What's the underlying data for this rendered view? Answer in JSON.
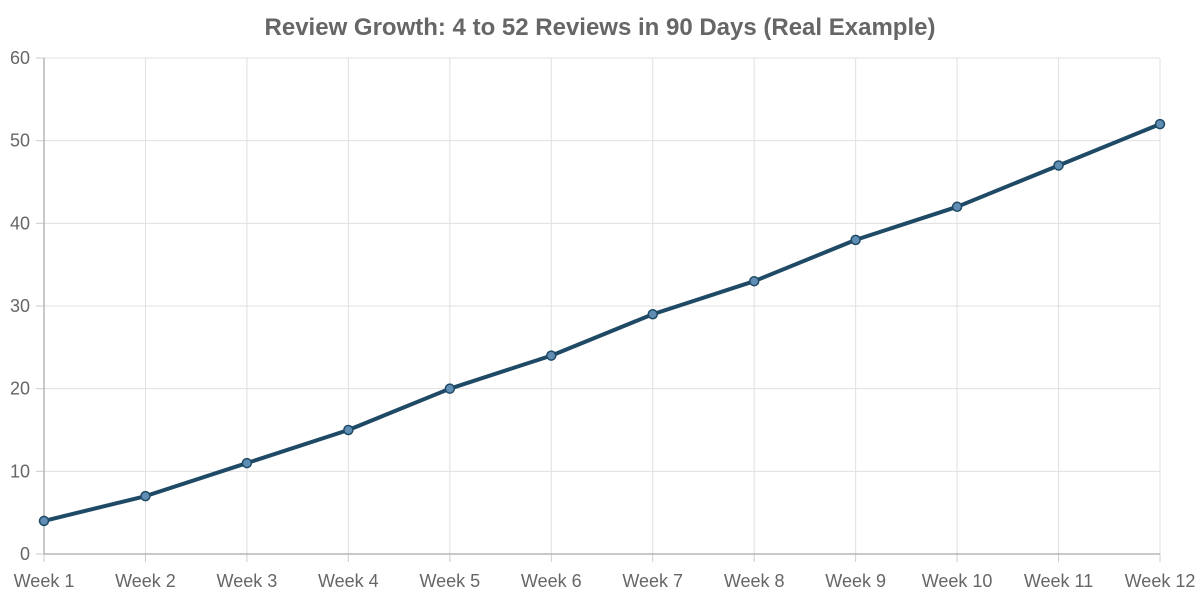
{
  "chart_data": {
    "type": "line",
    "title": "Review Growth: 4 to 52 Reviews in 90 Days (Real Example)",
    "xlabel": "",
    "ylabel": "",
    "categories": [
      "Week 1",
      "Week 2",
      "Week 3",
      "Week 4",
      "Week 5",
      "Week 6",
      "Week 7",
      "Week 8",
      "Week 9",
      "Week 10",
      "Week 11",
      "Week 12"
    ],
    "series": [
      {
        "values": [
          4,
          7,
          11,
          15,
          20,
          24,
          29,
          33,
          38,
          42,
          47,
          52
        ],
        "color": "#1f4a66",
        "point_fill": "#5f8db3"
      }
    ],
    "ylim": [
      0,
      60
    ],
    "yticks": [
      0,
      10,
      20,
      30,
      40,
      50,
      60
    ],
    "grid": true,
    "legend": "none"
  }
}
